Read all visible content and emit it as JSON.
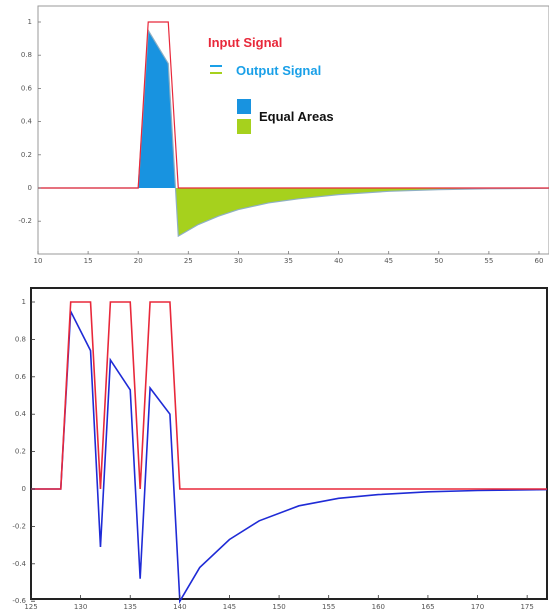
{
  "colors": {
    "input": "#e8283a",
    "output_top": "#1aa0e8",
    "output_bottom": "#1f2bd6",
    "equal_positive": "#1893e0",
    "equal_negative": "#a6d11d",
    "legend_input_text": "#e8283a",
    "legend_output_text": "#1aa0e8",
    "legend_equal_text": "#111111"
  },
  "legend": {
    "input": "Input Signal",
    "output": "Output Signal",
    "equal": "Equal Areas"
  },
  "chart_data": [
    {
      "type": "area",
      "title": "",
      "xlabel": "",
      "ylabel": "",
      "xlim": [
        10,
        61
      ],
      "ylim": [
        -0.35,
        1.05
      ],
      "grid": false,
      "legend_placement": "top-right",
      "xticks": [
        "10",
        "15",
        "20",
        "25",
        "30",
        "35",
        "40",
        "45",
        "50",
        "55",
        "60"
      ],
      "yticks": [
        "1",
        "0.8",
        "0.6",
        "0.4",
        "0.2",
        "0",
        "-0.2"
      ],
      "series": [
        {
          "name": "Input Signal",
          "x": [
            10,
            20,
            21,
            23,
            24,
            61
          ],
          "y": [
            0,
            0,
            1,
            1,
            0,
            0
          ]
        },
        {
          "name": "Output Signal",
          "x": [
            10,
            20,
            21,
            23,
            24,
            26,
            28,
            30,
            33,
            36,
            40,
            45,
            50,
            55,
            61
          ],
          "y": [
            0,
            0,
            0.95,
            0.75,
            -0.29,
            -0.22,
            -0.17,
            -0.13,
            -0.09,
            -0.065,
            -0.04,
            -0.02,
            -0.01,
            -0.005,
            -0.002
          ]
        }
      ]
    },
    {
      "type": "line",
      "title": "",
      "xlabel": "",
      "ylabel": "",
      "xlim": [
        125,
        177
      ],
      "ylim": [
        -0.62,
        1.08
      ],
      "grid": false,
      "legend_placement": "none",
      "xticks": [
        "125",
        "130",
        "135",
        "140",
        "145",
        "150",
        "155",
        "160",
        "165",
        "170",
        "175"
      ],
      "xtick_text": [
        "125",
        "130",
        "135",
        "140",
        "145",
        "150",
        "155",
        "160",
        "165",
        "170",
        "175"
      ],
      "yticks": [
        "1",
        "0.8",
        "0.6",
        "0.4",
        "0.2",
        "0",
        "-0.2",
        "-0.4",
        "-0.6"
      ],
      "series": [
        {
          "name": "Input Signal",
          "x": [
            125,
            128,
            129,
            131,
            132,
            133,
            135,
            136,
            137,
            139,
            140,
            177
          ],
          "y": [
            0,
            0,
            1,
            1,
            0,
            1,
            1,
            0,
            1,
            1,
            0,
            0
          ]
        },
        {
          "name": "Output Signal",
          "x": [
            125,
            128,
            129,
            131,
            132,
            133,
            135,
            136,
            137,
            139,
            140,
            142,
            145,
            148,
            152,
            156,
            160,
            165,
            170,
            177
          ],
          "y": [
            0,
            0,
            0.95,
            0.74,
            -0.31,
            0.69,
            0.53,
            -0.48,
            0.54,
            0.4,
            -0.6,
            -0.42,
            -0.27,
            -0.17,
            -0.09,
            -0.05,
            -0.03,
            -0.015,
            -0.008,
            -0.003
          ]
        }
      ]
    }
  ]
}
